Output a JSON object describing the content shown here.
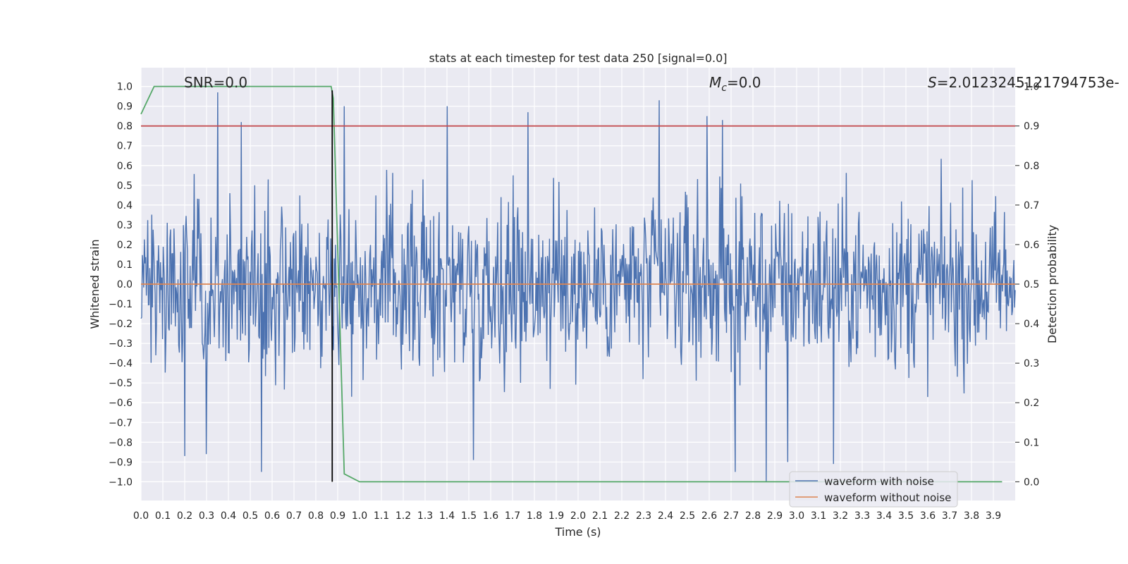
{
  "chart_data": {
    "type": "line",
    "title": "stats at each timestep for test data 250 [signal=0.0]",
    "xlabel": "Time (s)",
    "ylabel": "Whitened strain",
    "y2label": "Detection probability",
    "xlim": [
      0.0,
      4.0
    ],
    "ylim": [
      -1.095,
      1.095
    ],
    "y2lim": [
      -0.0475,
      1.0475
    ],
    "xticks": [
      "0.0",
      "0.1",
      "0.2",
      "0.3",
      "0.4",
      "0.5",
      "0.6",
      "0.7",
      "0.8",
      "0.9",
      "1.0",
      "1.1",
      "1.2",
      "1.3",
      "1.4",
      "1.5",
      "1.6",
      "1.7",
      "1.8",
      "1.9",
      "2.0",
      "2.1",
      "2.2",
      "2.3",
      "2.4",
      "2.5",
      "2.6",
      "2.7",
      "2.8",
      "2.9",
      "3.0",
      "3.1",
      "3.2",
      "3.3",
      "3.4",
      "3.5",
      "3.6",
      "3.7",
      "3.8",
      "3.9"
    ],
    "yticks": [
      "1.0",
      "0.9",
      "0.8",
      "0.7",
      "0.6",
      "0.5",
      "0.4",
      "0.3",
      "0.2",
      "0.1",
      "0.0",
      "−0.1",
      "−0.2",
      "−0.3",
      "−0.4",
      "−0.5",
      "−0.6",
      "−0.7",
      "−0.8",
      "−0.9",
      "−1.0"
    ],
    "y2ticks": [
      "1.0",
      "0.9",
      "0.8",
      "0.7",
      "0.6",
      "0.5",
      "0.4",
      "0.3",
      "0.2",
      "0.1",
      "0.0"
    ],
    "grid": true,
    "legend_position": "bottom-right",
    "annotations": {
      "snr": "SNR=0.0",
      "mc": "=0.0",
      "mc_symbol": "M",
      "mc_sub": "c",
      "s": "=2.0123245121794753e-",
      "s_symbol": "S"
    },
    "series": [
      {
        "name": "waveform with noise",
        "color": "#4c72b0",
        "description_kind": "noise",
        "sample_count": 1300,
        "amplitude_typical": 0.4,
        "spikes": [
          {
            "x": 0.35,
            "y": 0.97
          },
          {
            "x": 0.46,
            "y": 0.82
          },
          {
            "x": 0.93,
            "y": 0.9
          },
          {
            "x": 1.4,
            "y": 0.9
          },
          {
            "x": 1.77,
            "y": 0.87
          },
          {
            "x": 2.37,
            "y": 0.93
          },
          {
            "x": 2.59,
            "y": 0.85
          },
          {
            "x": 2.66,
            "y": 0.83
          },
          {
            "x": 0.55,
            "y": -0.95
          },
          {
            "x": 1.52,
            "y": -0.89
          },
          {
            "x": 2.72,
            "y": -0.95
          },
          {
            "x": 2.86,
            "y": -1.0
          },
          {
            "x": 2.96,
            "y": -0.9
          },
          {
            "x": 3.17,
            "y": -0.91
          },
          {
            "x": 0.2,
            "y": -0.87
          },
          {
            "x": 0.3,
            "y": -0.86
          }
        ]
      },
      {
        "name": "waveform without noise",
        "color": "#dd8452",
        "x": [
          0.0,
          4.0
        ],
        "y": [
          0.0,
          0.0
        ]
      },
      {
        "name": "",
        "color": "#55a868",
        "axis": "right",
        "x": [
          0.0,
          0.06,
          0.1,
          0.87,
          0.88,
          0.93,
          1.0,
          3.94
        ],
        "y": [
          0.93,
          1.0,
          1.0,
          1.0,
          0.97,
          0.02,
          0.0,
          0.0
        ]
      },
      {
        "name": "",
        "color": "#c44e52",
        "axis": "right",
        "x": [
          0.0,
          4.0
        ],
        "y": [
          0.9,
          0.9
        ]
      }
    ],
    "vline": {
      "x": 0.875,
      "color": "#000000"
    }
  }
}
